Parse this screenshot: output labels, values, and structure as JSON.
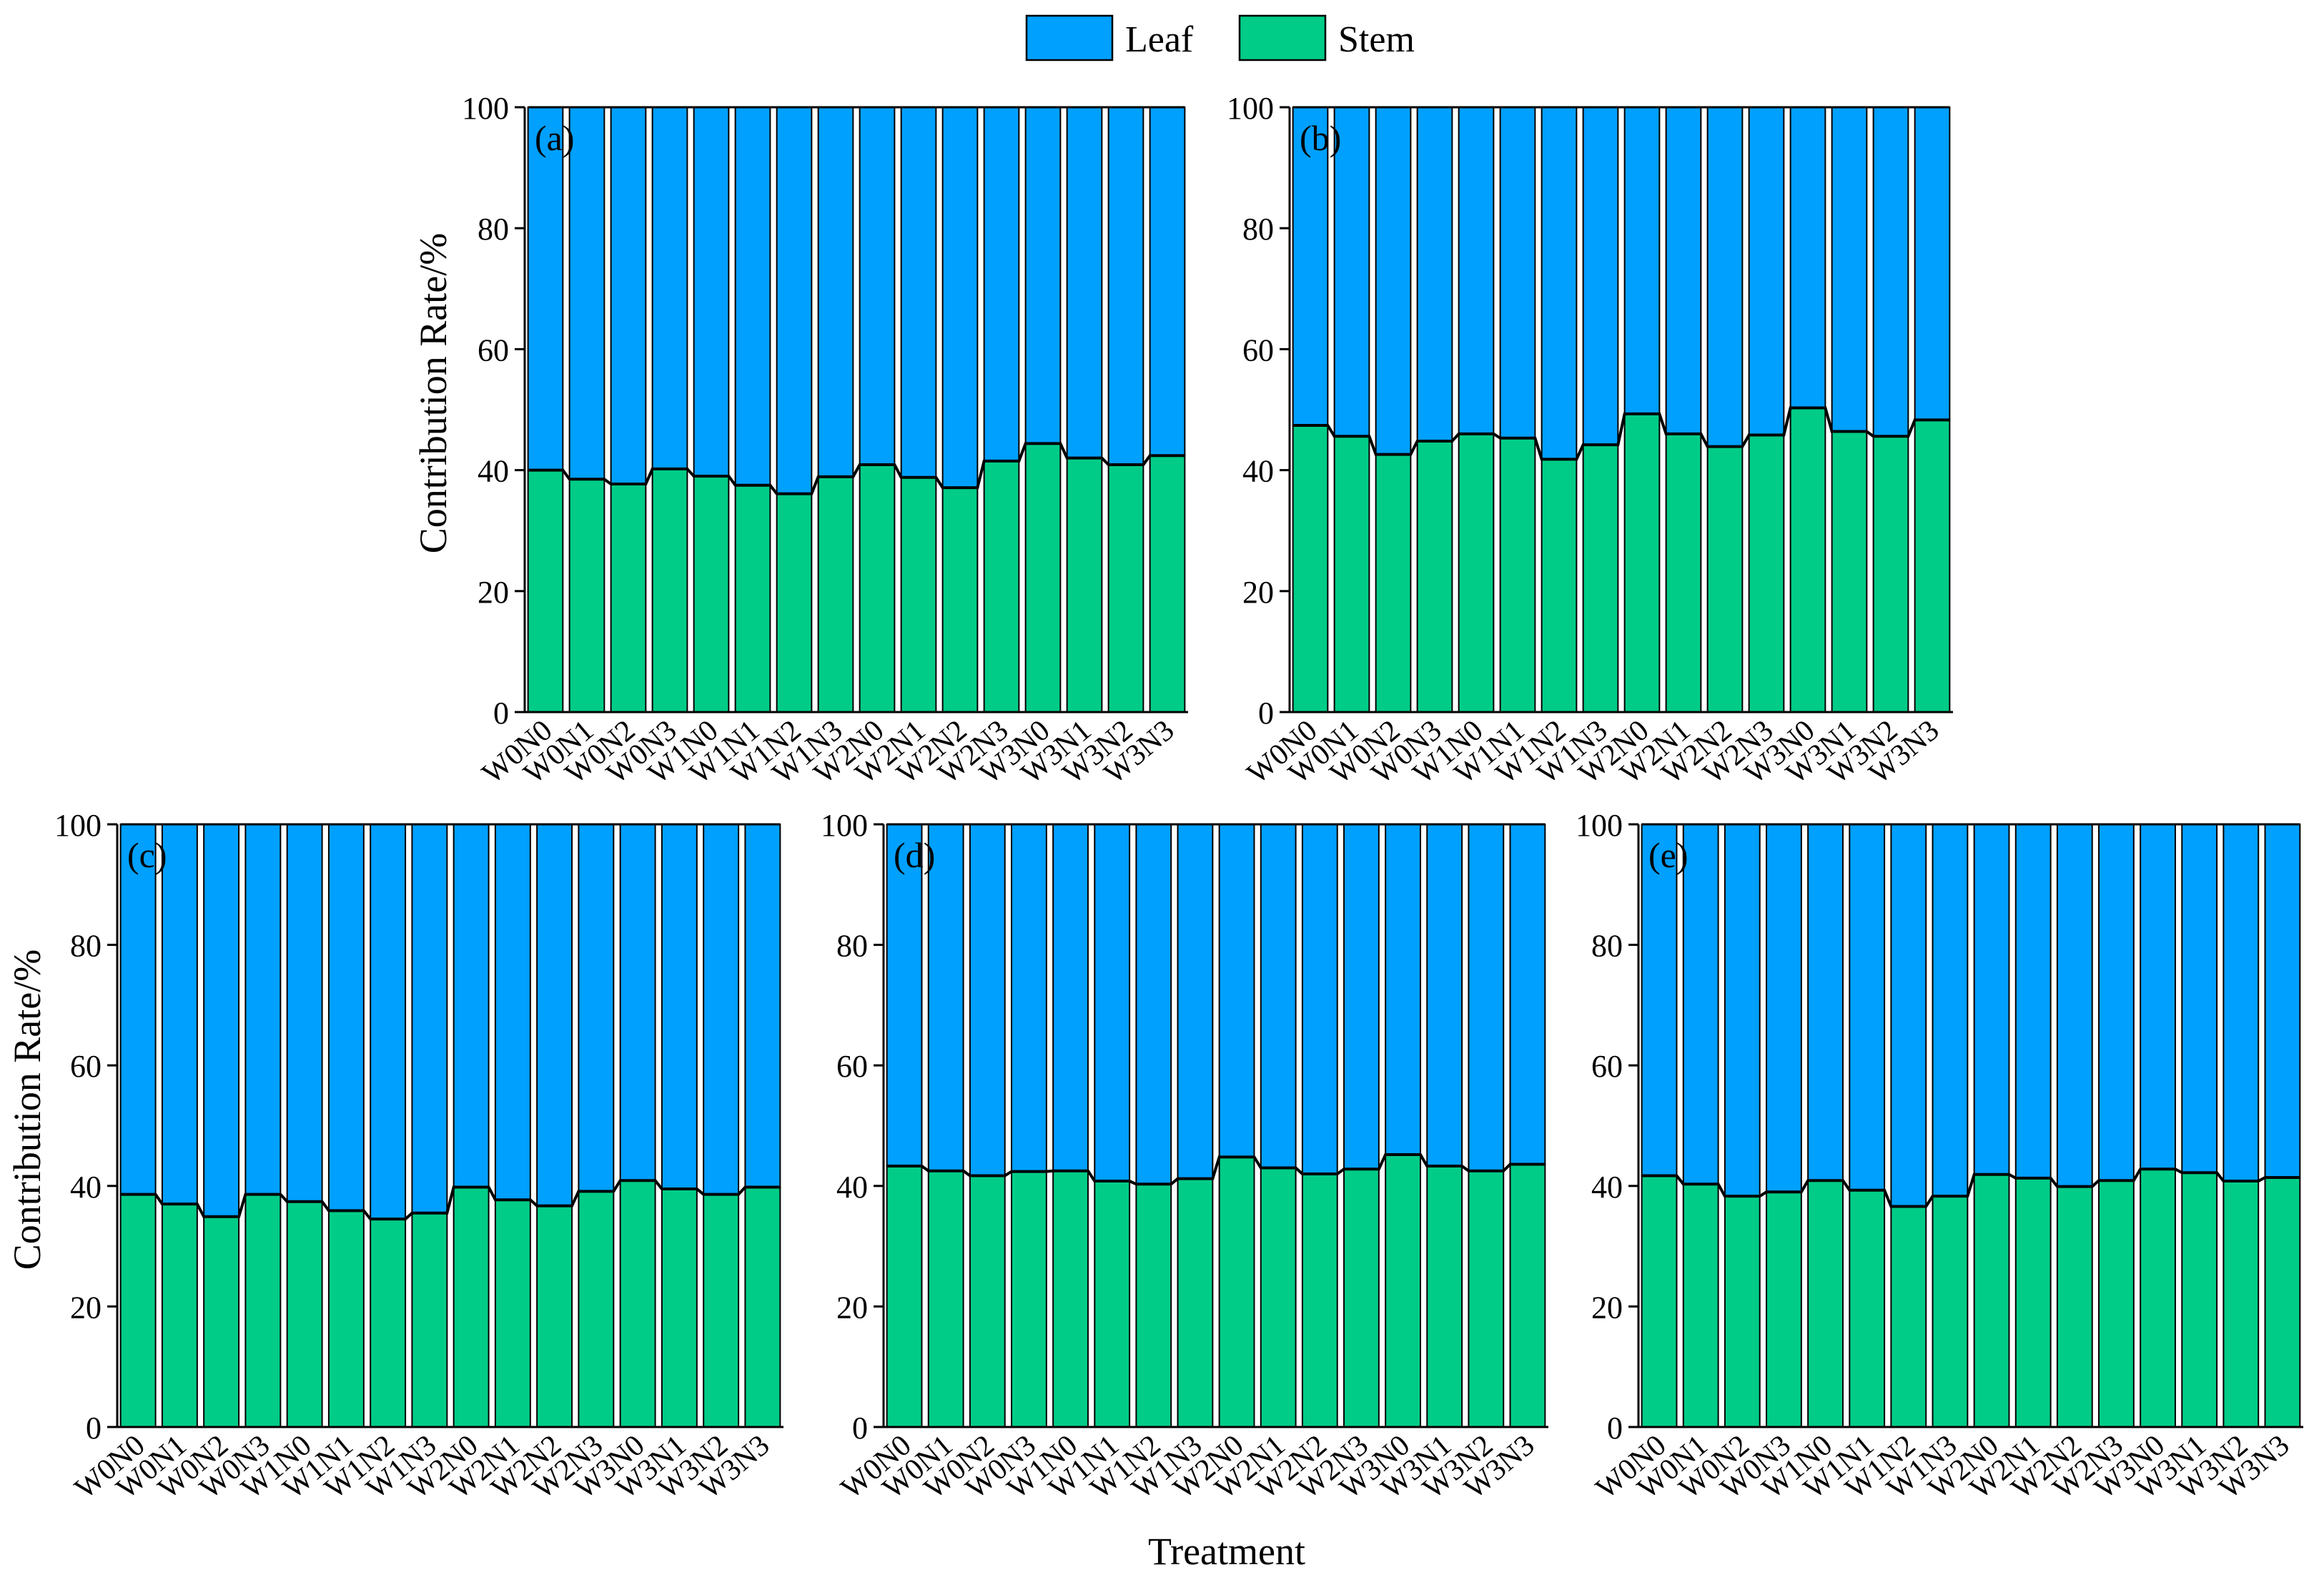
{
  "legend": {
    "items": [
      {
        "label": "Leaf",
        "color": "#00A0FF"
      },
      {
        "label": "Stem",
        "color": "#00CC88"
      }
    ]
  },
  "shared": {
    "xlabel": "Treatment",
    "ylabel": "Contribution Rate/%"
  },
  "chart_data": [
    {
      "type": "bar",
      "stacked": true,
      "panel": "(a)",
      "categories": [
        "W0N0",
        "W0N1",
        "W0N2",
        "W0N3",
        "W1N0",
        "W1N1",
        "W1N2",
        "W1N3",
        "W2N0",
        "W2N1",
        "W2N2",
        "W2N3",
        "W3N0",
        "W3N1",
        "W3N2",
        "W3N3"
      ],
      "series": [
        {
          "name": "Stem",
          "values": [
            40,
            38.5,
            37.7,
            40.2,
            39,
            37.5,
            36.1,
            38.9,
            40.9,
            38.8,
            37.1,
            41.5,
            44.4,
            42,
            40.9,
            42.4
          ]
        },
        {
          "name": "Leaf",
          "values": [
            60,
            61.5,
            62.3,
            59.8,
            61,
            62.5,
            63.9,
            61.1,
            59.1,
            61.2,
            62.9,
            58.5,
            55.6,
            58,
            59.1,
            57.6
          ]
        }
      ],
      "ylabel": "Contribution Rate/%",
      "ylim": [
        0,
        100
      ],
      "yticks": [
        0,
        20,
        40,
        60,
        80,
        100
      ]
    },
    {
      "type": "bar",
      "stacked": true,
      "panel": "(b)",
      "categories": [
        "W0N0",
        "W0N1",
        "W0N2",
        "W0N3",
        "W1N0",
        "W1N1",
        "W1N2",
        "W1N3",
        "W2N0",
        "W2N1",
        "W2N2",
        "W2N3",
        "W3N0",
        "W3N1",
        "W3N2",
        "W3N3"
      ],
      "series": [
        {
          "name": "Stem",
          "values": [
            47.4,
            45.6,
            42.6,
            44.8,
            46,
            45.3,
            41.8,
            44.2,
            49.3,
            46,
            43.9,
            45.8,
            50.3,
            46.4,
            45.6,
            48.3
          ]
        },
        {
          "name": "Leaf",
          "values": [
            52.6,
            54.4,
            57.4,
            55.2,
            54,
            54.7,
            58.2,
            55.8,
            50.7,
            54,
            56.1,
            54.2,
            49.7,
            53.6,
            54.4,
            51.7
          ]
        }
      ],
      "ylim": [
        0,
        100
      ],
      "yticks": [
        0,
        20,
        40,
        60,
        80,
        100
      ]
    },
    {
      "type": "bar",
      "stacked": true,
      "panel": "(c)",
      "categories": [
        "W0N0",
        "W0N1",
        "W0N2",
        "W0N3",
        "W1N0",
        "W1N1",
        "W1N2",
        "W1N3",
        "W2N0",
        "W2N1",
        "W2N2",
        "W2N3",
        "W3N0",
        "W3N1",
        "W3N2",
        "W3N3"
      ],
      "series": [
        {
          "name": "Stem",
          "values": [
            38.6,
            37,
            34.9,
            38.6,
            37.4,
            35.9,
            34.5,
            35.5,
            39.8,
            37.7,
            36.7,
            39.1,
            40.9,
            39.5,
            38.6,
            39.8
          ]
        },
        {
          "name": "Leaf",
          "values": [
            61.4,
            63,
            65.1,
            61.4,
            62.6,
            64.1,
            65.5,
            64.5,
            60.2,
            62.3,
            63.3,
            60.9,
            59.1,
            60.5,
            61.4,
            60.2
          ]
        }
      ],
      "ylabel": "Contribution Rate/%",
      "ylim": [
        0,
        100
      ],
      "yticks": [
        0,
        20,
        40,
        60,
        80,
        100
      ]
    },
    {
      "type": "bar",
      "stacked": true,
      "panel": "(d)",
      "categories": [
        "W0N0",
        "W0N1",
        "W0N2",
        "W0N3",
        "W1N0",
        "W1N1",
        "W1N2",
        "W1N3",
        "W2N0",
        "W2N1",
        "W2N2",
        "W2N3",
        "W3N0",
        "W3N1",
        "W3N2",
        "W3N3"
      ],
      "series": [
        {
          "name": "Stem",
          "values": [
            43.3,
            42.5,
            41.7,
            42.4,
            42.5,
            40.8,
            40.3,
            41.2,
            44.8,
            43,
            42,
            42.8,
            45.2,
            43.3,
            42.5,
            43.6
          ]
        },
        {
          "name": "Leaf",
          "values": [
            56.7,
            57.5,
            58.3,
            57.6,
            57.5,
            59.2,
            59.7,
            58.8,
            55.2,
            57,
            58,
            57.2,
            54.8,
            56.7,
            57.5,
            56.4
          ]
        }
      ],
      "xlabel": "Treatment",
      "ylim": [
        0,
        100
      ],
      "yticks": [
        0,
        20,
        40,
        60,
        80,
        100
      ]
    },
    {
      "type": "bar",
      "stacked": true,
      "panel": "(e)",
      "categories": [
        "W0N0",
        "W0N1",
        "W0N2",
        "W0N3",
        "W1N0",
        "W1N1",
        "W1N2",
        "W1N3",
        "W2N0",
        "W2N1",
        "W2N2",
        "W2N3",
        "W3N0",
        "W3N1",
        "W3N2",
        "W3N3"
      ],
      "series": [
        {
          "name": "Stem",
          "values": [
            41.7,
            40.3,
            38.3,
            39,
            40.9,
            39.3,
            36.6,
            38.3,
            41.9,
            41.3,
            39.9,
            40.9,
            42.8,
            42.2,
            40.8,
            41.4
          ]
        },
        {
          "name": "Leaf",
          "values": [
            58.3,
            59.7,
            61.7,
            61,
            59.1,
            60.7,
            63.4,
            61.7,
            58.1,
            58.7,
            60.1,
            59.1,
            57.2,
            57.8,
            59.2,
            58.6
          ]
        }
      ],
      "ylim": [
        0,
        100
      ],
      "yticks": [
        0,
        20,
        40,
        60,
        80,
        100
      ]
    }
  ]
}
